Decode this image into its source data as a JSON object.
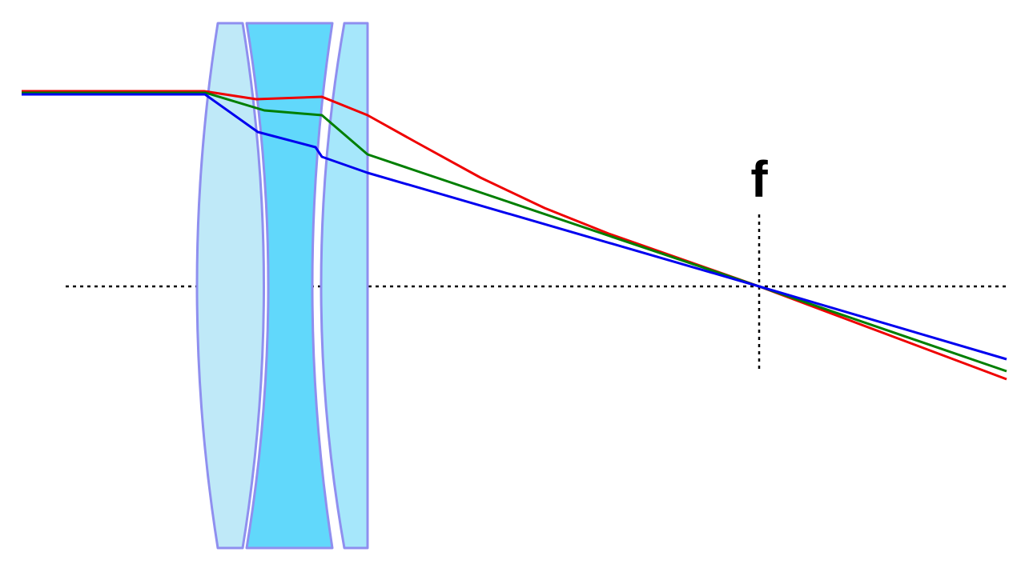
{
  "focal_label": "f",
  "colors": {
    "background": "#ffffff",
    "lens_outline": "#8f8fef",
    "lens1_fill": "#bfe9f8",
    "lens2_fill": "#61d8fb",
    "lens3_fill": "#a6e7fb",
    "axis": "#000000",
    "ray_red": "#ef0000",
    "ray_green": "#007f00",
    "ray_blue": "#0000ef"
  },
  "lenses": [
    {
      "kind": "biconvex",
      "fill_key": "lens1_fill"
    },
    {
      "kind": "biconcave",
      "fill_key": "lens2_fill"
    },
    {
      "kind": "plano-convex",
      "fill_key": "lens3_fill"
    }
  ],
  "rays": [
    {
      "color": "red",
      "color_key": "ray_red"
    },
    {
      "color": "green",
      "color_key": "ray_green"
    },
    {
      "color": "blue",
      "color_key": "ray_blue"
    }
  ]
}
